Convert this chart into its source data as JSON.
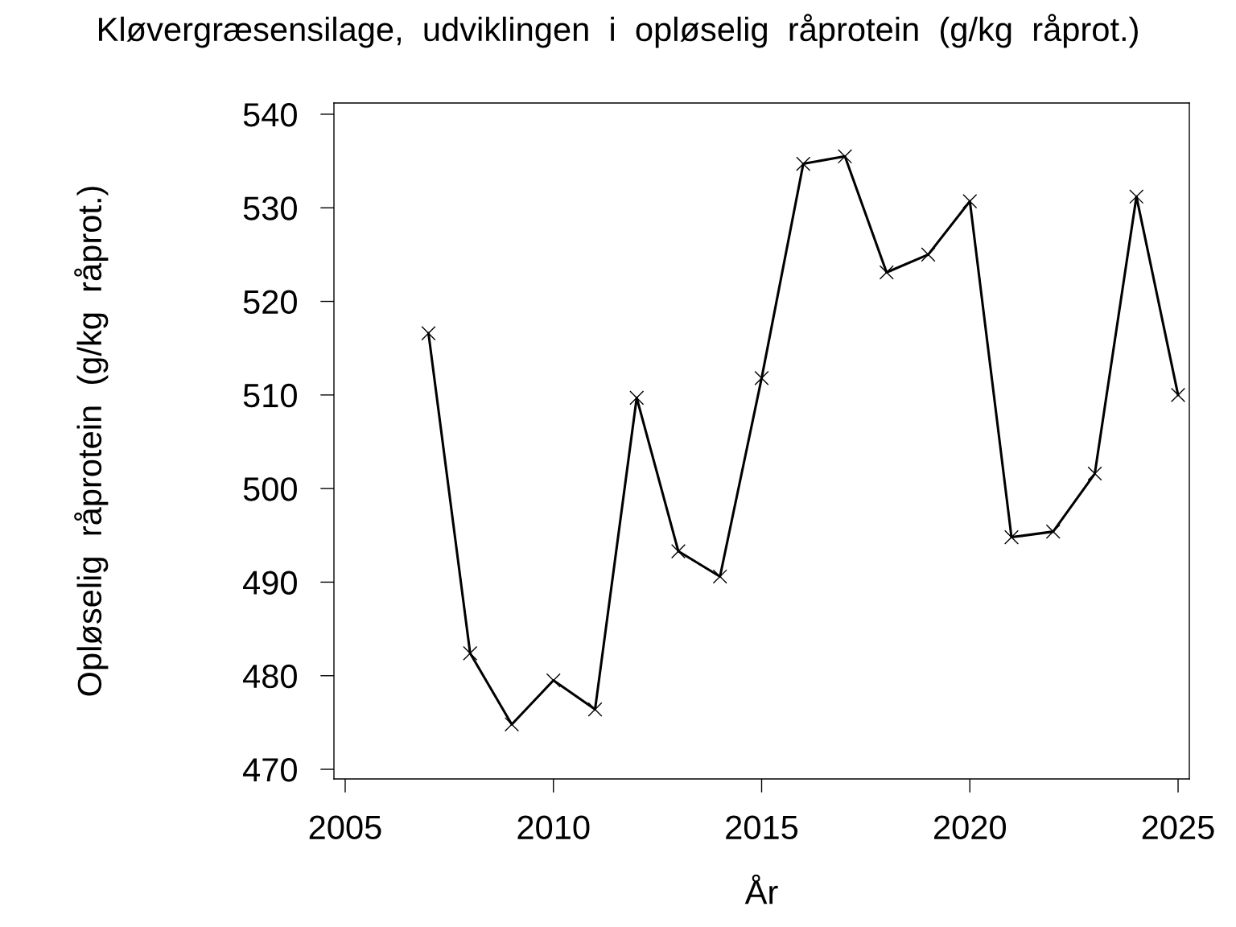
{
  "chart_data": {
    "type": "line",
    "title": "Kløvergræsensilage,  udviklingen  i  opløselig  råprotein  (g/kg  råprot.)",
    "xlabel": "År",
    "ylabel": "Opløselig  råprotein  (g/kg  råprot.)",
    "x": [
      2007,
      2008,
      2009,
      2010,
      2011,
      2012,
      2013,
      2014,
      2015,
      2016,
      2017,
      2018,
      2019,
      2020,
      2021,
      2022,
      2023,
      2024,
      2025
    ],
    "series": [
      {
        "color": "#000000",
        "values": [
          516.6,
          482.4,
          474.8,
          479.5,
          476.4,
          509.7,
          493.3,
          490.6,
          511.8,
          534.7,
          535.5,
          523.1,
          525.0,
          530.7,
          494.8,
          495.4,
          501.6,
          531.2,
          510.0
        ]
      }
    ],
    "xlim": [
      2004.73,
      2025.27
    ],
    "ylim": [
      468.97,
      541.2
    ],
    "xticks": [
      2005,
      2010,
      2015,
      2020,
      2025
    ],
    "yticks": [
      470,
      480,
      490,
      500,
      510,
      520,
      530,
      540
    ],
    "grid": false,
    "legend": false,
    "marker": "cross",
    "line_style": "solid"
  }
}
